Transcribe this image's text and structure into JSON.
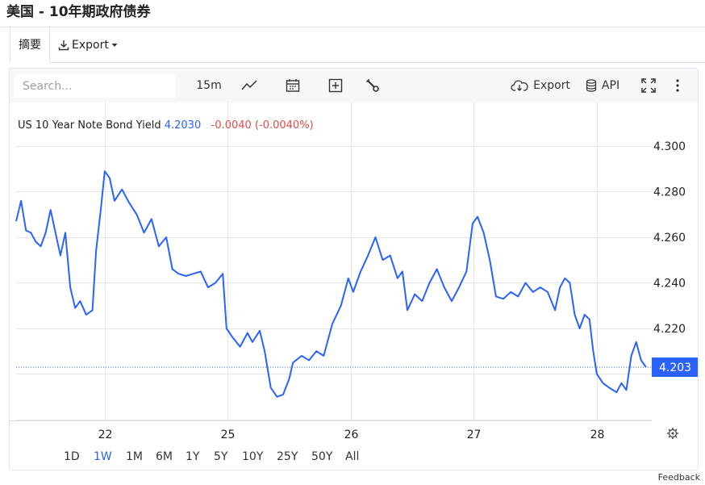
{
  "page": {
    "title": "美国 - 10年期政府债券"
  },
  "tabs": {
    "summary": "摘要",
    "export": "Export"
  },
  "toolbar": {
    "search_placeholder": "Search...",
    "interval": "15m",
    "export": "Export",
    "api": "API"
  },
  "legend": {
    "series_name": "US 10 Year Note Bond Yield",
    "last": "4.2030",
    "change": "-0.0040 (-0.0040%)"
  },
  "ranges": {
    "items": [
      "1D",
      "1W",
      "1M",
      "6M",
      "1Y",
      "5Y",
      "10Y",
      "25Y",
      "50Y",
      "All"
    ],
    "active": "1W"
  },
  "footer": {
    "feedback": "Feedback"
  },
  "colors": {
    "line": "#2962ff",
    "change_negative": "#e44b4b",
    "grid": "#e6e6e6",
    "label_bg": "#2962ff"
  },
  "chart_data": {
    "type": "line",
    "title": "",
    "xlabel": "",
    "ylabel": "",
    "x_tick_labels": [
      "22",
      "25",
      "26",
      "27",
      "28"
    ],
    "x_ticks_days": [
      1.0,
      2.0,
      3.0,
      4.0,
      5.0
    ],
    "x_range_days": [
      0.28,
      5.42
    ],
    "ylim": [
      4.18,
      4.31
    ],
    "y_ticks": [
      4.22,
      4.24,
      4.26,
      4.28,
      4.3
    ],
    "last_value": 4.203,
    "last_value_label": "4.203",
    "grid": true,
    "legend_position": "top-left",
    "series": [
      {
        "points": [
          [
            0.28,
            4.267
          ],
          [
            0.32,
            4.276
          ],
          [
            0.36,
            4.263
          ],
          [
            0.4,
            4.262
          ],
          [
            0.44,
            4.258
          ],
          [
            0.48,
            4.256
          ],
          [
            0.52,
            4.262
          ],
          [
            0.56,
            4.272
          ],
          [
            0.6,
            4.262
          ],
          [
            0.64,
            4.252
          ],
          [
            0.68,
            4.262
          ],
          [
            0.72,
            4.238
          ],
          [
            0.76,
            4.229
          ],
          [
            0.8,
            4.232
          ],
          [
            0.85,
            4.226
          ],
          [
            0.9,
            4.228
          ],
          [
            0.93,
            4.254
          ],
          [
            0.97,
            4.273
          ],
          [
            1.0,
            4.289
          ],
          [
            1.04,
            4.286
          ],
          [
            1.08,
            4.276
          ],
          [
            1.14,
            4.281
          ],
          [
            1.2,
            4.275
          ],
          [
            1.26,
            4.27
          ],
          [
            1.32,
            4.262
          ],
          [
            1.38,
            4.268
          ],
          [
            1.44,
            4.256
          ],
          [
            1.5,
            4.26
          ],
          [
            1.55,
            4.246
          ],
          [
            1.6,
            4.244
          ],
          [
            1.66,
            4.243
          ],
          [
            1.72,
            4.244
          ],
          [
            1.78,
            4.245
          ],
          [
            1.84,
            4.238
          ],
          [
            1.9,
            4.24
          ],
          [
            1.96,
            4.244
          ],
          [
            1.99,
            4.22
          ],
          [
            2.04,
            4.216
          ],
          [
            2.1,
            4.212
          ],
          [
            2.16,
            4.218
          ],
          [
            2.2,
            4.214
          ],
          [
            2.26,
            4.219
          ],
          [
            2.3,
            4.21
          ],
          [
            2.35,
            4.194
          ],
          [
            2.4,
            4.19
          ],
          [
            2.45,
            4.191
          ],
          [
            2.5,
            4.198
          ],
          [
            2.53,
            4.205
          ],
          [
            2.6,
            4.208
          ],
          [
            2.66,
            4.206
          ],
          [
            2.72,
            4.21
          ],
          [
            2.78,
            4.208
          ],
          [
            2.85,
            4.222
          ],
          [
            2.92,
            4.23
          ],
          [
            2.98,
            4.242
          ],
          [
            3.02,
            4.236
          ],
          [
            3.08,
            4.245
          ],
          [
            3.14,
            4.252
          ],
          [
            3.2,
            4.26
          ],
          [
            3.26,
            4.25
          ],
          [
            3.32,
            4.252
          ],
          [
            3.38,
            4.242
          ],
          [
            3.42,
            4.245
          ],
          [
            3.46,
            4.228
          ],
          [
            3.52,
            4.235
          ],
          [
            3.58,
            4.232
          ],
          [
            3.64,
            4.24
          ],
          [
            3.7,
            4.246
          ],
          [
            3.76,
            4.238
          ],
          [
            3.82,
            4.232
          ],
          [
            3.88,
            4.238
          ],
          [
            3.94,
            4.245
          ],
          [
            3.99,
            4.266
          ],
          [
            4.03,
            4.269
          ],
          [
            4.08,
            4.262
          ],
          [
            4.13,
            4.25
          ],
          [
            4.18,
            4.234
          ],
          [
            4.24,
            4.233
          ],
          [
            4.3,
            4.236
          ],
          [
            4.36,
            4.234
          ],
          [
            4.42,
            4.24
          ],
          [
            4.48,
            4.236
          ],
          [
            4.54,
            4.238
          ],
          [
            4.6,
            4.236
          ],
          [
            4.66,
            4.228
          ],
          [
            4.7,
            4.238
          ],
          [
            4.74,
            4.242
          ],
          [
            4.78,
            4.24
          ],
          [
            4.82,
            4.226
          ],
          [
            4.86,
            4.22
          ],
          [
            4.9,
            4.226
          ],
          [
            4.94,
            4.224
          ],
          [
            4.97,
            4.21
          ],
          [
            5.0,
            4.2
          ],
          [
            5.05,
            4.196
          ],
          [
            5.1,
            4.194
          ],
          [
            5.16,
            4.192
          ],
          [
            5.2,
            4.196
          ],
          [
            5.24,
            4.193
          ],
          [
            5.28,
            4.208
          ],
          [
            5.32,
            4.214
          ],
          [
            5.36,
            4.206
          ],
          [
            5.4,
            4.203
          ]
        ]
      }
    ]
  }
}
